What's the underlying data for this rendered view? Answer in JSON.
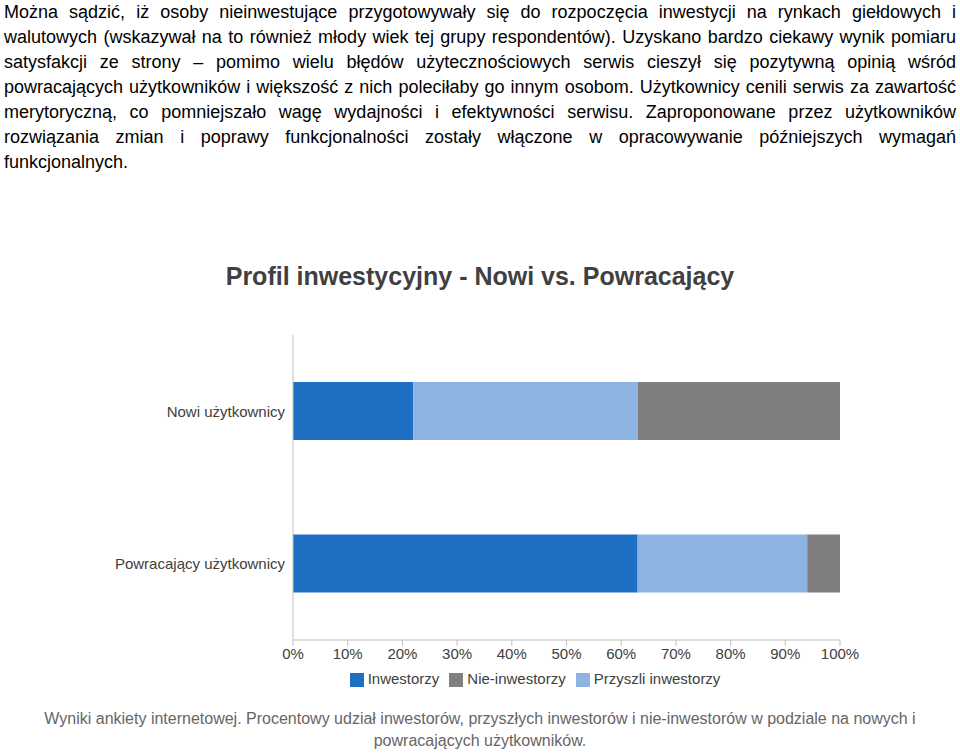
{
  "text": "Można sądzić, iż osoby nieinwestujące przygotowywały się do rozpoczęcia inwestycji na rynkach giełdowych i walutowych (wskazywał na to również młody wiek tej grupy respondentów). Uzyskano bardzo ciekawy wynik pomiaru satysfakcji ze strony – pomimo wielu błędów użytecznościowych serwis cieszył się pozytywną opinią wśród powracających użytkowników i większość z nich poleciłaby go innym osobom. Użytkownicy cenili serwis za zawartość merytoryczną, co pomniejszało wagę wydajności i efektywności serwisu. Zaproponowane przez użytkowników rozwiązania zmian i poprawy funkcjonalności zostały włączone w opracowywanie późniejszych wymagań funkcjonalnych.",
  "chart_data": {
    "type": "bar",
    "title": "Profil inwestycyjny - Nowi vs. Powracający",
    "orientation": "horizontal",
    "stacked": true,
    "grid": false,
    "legend": "bottom",
    "categories": [
      "Nowi użytkownicy",
      "Powracający użytkownicy"
    ],
    "series": [
      {
        "name": "Inwestorzy",
        "color": "#1f6fc5",
        "values": [
          22,
          63
        ]
      },
      {
        "name": "Przyszli inwestorzy",
        "color": "#8db3e2",
        "values": [
          41,
          31
        ]
      },
      {
        "name": "Nie-inwestorzy",
        "color": "#7f7f7f",
        "values": [
          37,
          6
        ]
      }
    ],
    "xlim": [
      0,
      100
    ],
    "xticks": [
      {
        "value": 0,
        "label": "0%"
      },
      {
        "value": 10,
        "label": "10%"
      },
      {
        "value": 20,
        "label": "20%"
      },
      {
        "value": 30,
        "label": "30%"
      },
      {
        "value": 40,
        "label": "40%"
      },
      {
        "value": 50,
        "label": "50%"
      },
      {
        "value": 60,
        "label": "60%"
      },
      {
        "value": 70,
        "label": "70%"
      },
      {
        "value": 80,
        "label": "80%"
      },
      {
        "value": 90,
        "label": "90%"
      },
      {
        "value": 100,
        "label": "100%"
      }
    ]
  },
  "caption": "Wyniki ankiety internetowej. Procentowy udział inwestorów, przyszłych inwestorów i nie-inwestorów w podziale na nowych i powracających użytkowników."
}
